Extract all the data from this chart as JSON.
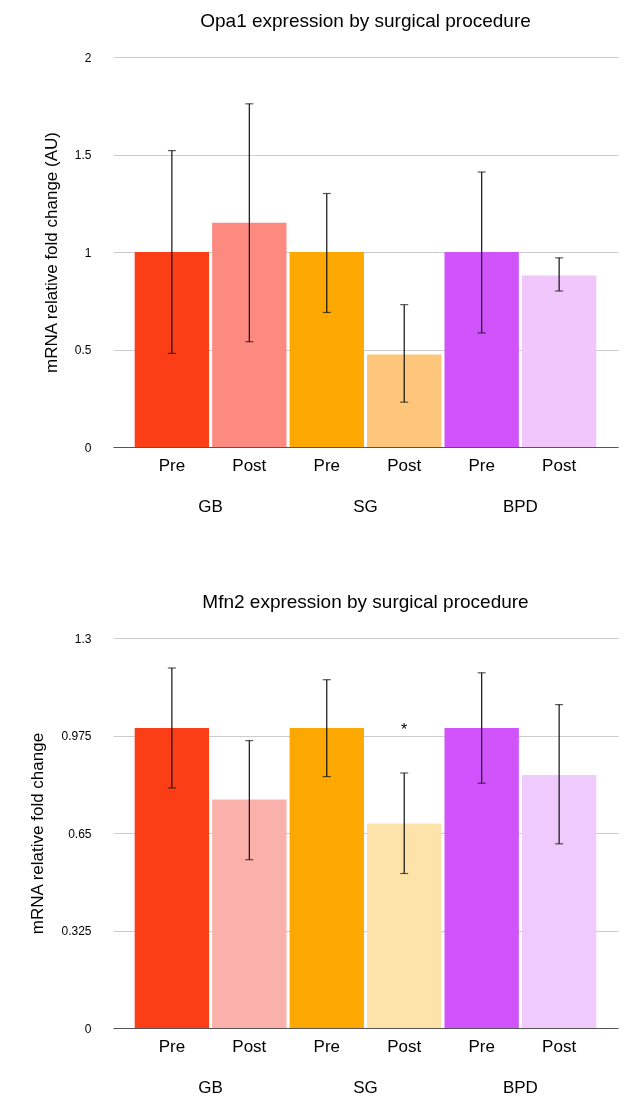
{
  "chart_data": [
    {
      "type": "bar",
      "title": "Opa1 expression by surgical procedure",
      "ylabel": "mRNA relative fold change (AU)",
      "categories": [
        "Pre",
        "Post",
        "Pre",
        "Post",
        "Pre",
        "Post"
      ],
      "values": [
        1.0,
        1.15,
        1.0,
        0.475,
        1.0,
        0.88
      ],
      "colors": [
        "#fc3e17",
        "#fd8a80",
        "#fca800",
        "#fdc67a",
        "#d053fb",
        "#f0c6fb"
      ],
      "errors": [
        [
          0.48,
          1.52
        ],
        [
          0.54,
          1.76
        ],
        [
          0.69,
          1.3
        ],
        [
          0.23,
          0.73
        ],
        [
          0.585,
          1.41
        ],
        [
          0.8,
          0.97
        ]
      ],
      "ylim": [
        0,
        2
      ],
      "yticks": [
        0,
        0.5,
        1,
        1.5,
        2
      ],
      "grid": "y",
      "annotations": [
        "GB",
        "SG",
        "BPD"
      ]
    },
    {
      "type": "bar",
      "title": "Mfn2 expression by surgical procedure",
      "ylabel": "mRNA relative fold change",
      "categories": [
        "Pre",
        "Post",
        "Pre",
        "Post",
        "Pre",
        "Post"
      ],
      "values": [
        1.0,
        0.762,
        1.0,
        0.682,
        1.0,
        0.843
      ],
      "colors": [
        "#fc3e17",
        "#fbb1ab",
        "#fca800",
        "#fde3a9",
        "#d053fb",
        "#efcafc"
      ],
      "errors": [
        [
          0.8,
          1.2
        ],
        [
          0.561,
          0.958
        ],
        [
          0.838,
          1.161
        ],
        [
          0.515,
          0.85
        ],
        [
          0.816,
          1.184
        ],
        [
          0.614,
          1.078
        ]
      ],
      "ylim": [
        0,
        1.3
      ],
      "yticks": [
        0,
        0.325,
        0.65,
        0.975,
        1.3
      ],
      "grid": "y",
      "annotations": [
        "GB",
        "SG",
        "BPD",
        "*"
      ]
    }
  ]
}
